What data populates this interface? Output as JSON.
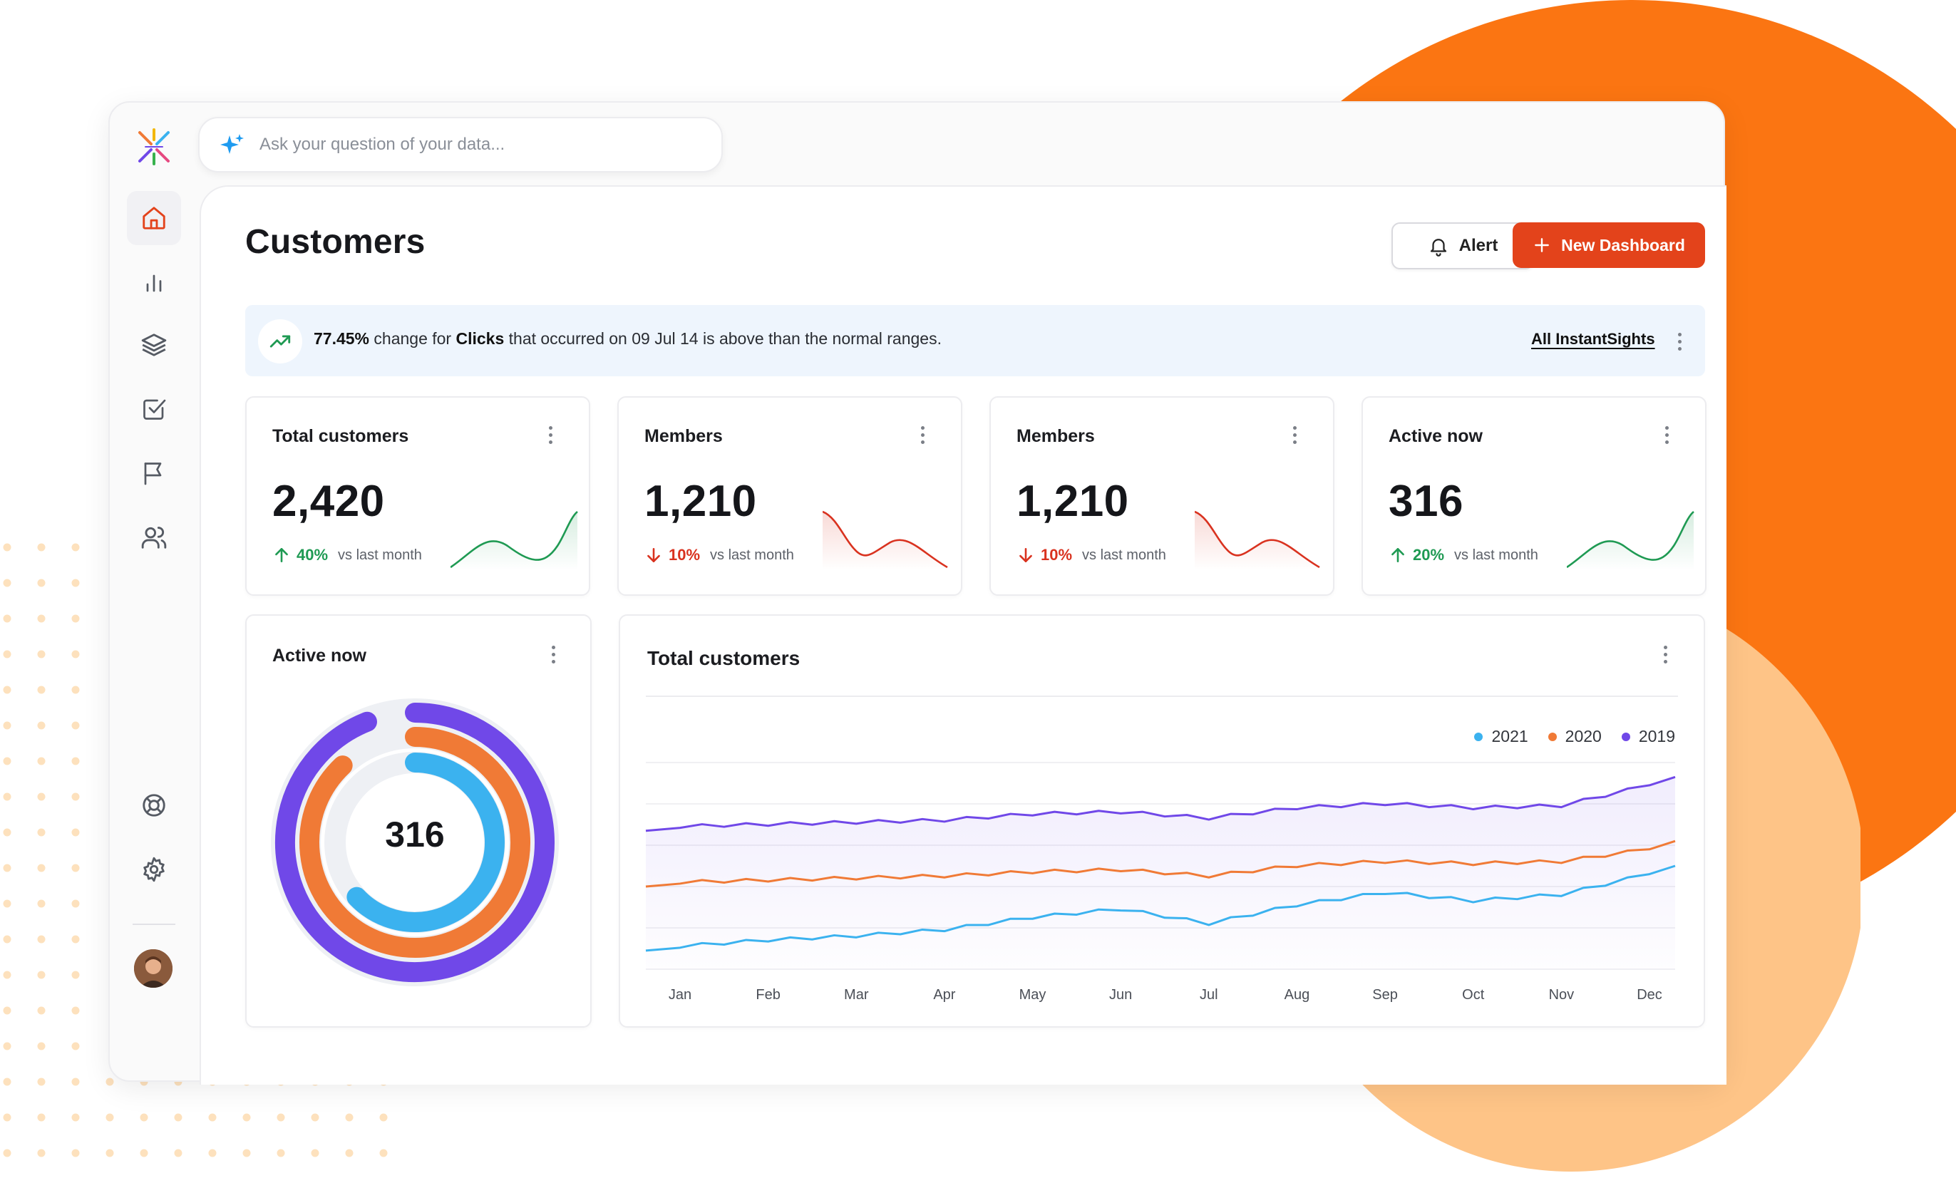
{
  "search": {
    "placeholder": "Ask your question of your data..."
  },
  "sidebar": {
    "items": [
      {
        "icon": "home-icon",
        "active": true
      },
      {
        "icon": "bar-chart-icon"
      },
      {
        "icon": "layers-icon"
      },
      {
        "icon": "check-square-icon"
      },
      {
        "icon": "flag-icon"
      },
      {
        "icon": "users-icon"
      },
      {
        "icon": "support-icon"
      },
      {
        "icon": "settings-icon"
      }
    ]
  },
  "header": {
    "title": "Customers",
    "alert_label": "Alert",
    "new_dashboard_label": "New Dashboard"
  },
  "insight": {
    "pct": "77.45%",
    "text1": " change for ",
    "metric": "Clicks",
    "text2": " that occurred on 09 Jul 14 is above than the normal ranges.",
    "link": "All InstantSights"
  },
  "kpis": [
    {
      "title": "Total customers",
      "value": "2,420",
      "delta": "40%",
      "direction": "up",
      "vs": "vs last month"
    },
    {
      "title": "Members",
      "value": "1,210",
      "delta": "10%",
      "direction": "down",
      "vs": "vs last month"
    },
    {
      "title": "Members",
      "value": "1,210",
      "delta": "10%",
      "direction": "down",
      "vs": "vs last month"
    },
    {
      "title": "Active now",
      "value": "316",
      "delta": "20%",
      "direction": "up",
      "vs": "vs last month"
    }
  ],
  "active_card": {
    "title": "Active now",
    "center": "316"
  },
  "line_card": {
    "title": "Total customers"
  },
  "colors": {
    "accent": "#e3431b",
    "up": "#1f9a53",
    "down": "#d9321f",
    "s2021": "#3bb2ef",
    "s2020": "#f07a36",
    "s2019": "#7048e8"
  },
  "chart_data": [
    {
      "type": "line",
      "title": "Total customers",
      "x": [
        "Jan",
        "Feb",
        "Mar",
        "Apr",
        "May",
        "Jun",
        "Jul",
        "Aug",
        "Sep",
        "Oct",
        "Nov",
        "Dec"
      ],
      "ylim": [
        0,
        100
      ],
      "grid": true,
      "legend_position": "top-right",
      "series": [
        {
          "name": "2021",
          "values": [
            11,
            14,
            16,
            19,
            25,
            29,
            22,
            31,
            37,
            33,
            36,
            46
          ]
        },
        {
          "name": "2020",
          "values": [
            42,
            43,
            44,
            45,
            47,
            48,
            45,
            50,
            52,
            51,
            52,
            58
          ]
        },
        {
          "name": "2019",
          "values": [
            69,
            70,
            71,
            72,
            75,
            76,
            73,
            78,
            80,
            78,
            79,
            89
          ]
        }
      ]
    },
    {
      "type": "pie",
      "title": "Active now",
      "center_label": "316",
      "series": [
        {
          "name": "outer",
          "values": [
            0.94
          ]
        },
        {
          "name": "middle",
          "values": [
            0.88
          ]
        },
        {
          "name": "inner",
          "values": [
            0.63
          ]
        }
      ]
    }
  ]
}
